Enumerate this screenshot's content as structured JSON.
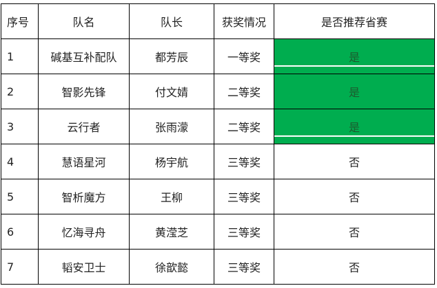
{
  "headers": [
    "序号",
    "队名",
    "队长",
    "获奖情况",
    "是否推荐省赛"
  ],
  "rows": [
    {
      "no": "1",
      "team": "碱基互补配队",
      "captain": "都芳辰",
      "award": "一等奖",
      "recommend": "是"
    },
    {
      "no": "2",
      "team": "智影先锋",
      "captain": "付文婧",
      "award": "二等奖",
      "recommend": "是"
    },
    {
      "no": "3",
      "team": "云行者",
      "captain": "张雨濛",
      "award": "二等奖",
      "recommend": "是"
    },
    {
      "no": "4",
      "team": "慧语星河",
      "captain": "杨宇航",
      "award": "三等奖",
      "recommend": "否"
    },
    {
      "no": "5",
      "team": "智析魔方",
      "captain": "王柳",
      "award": "三等奖",
      "recommend": "否"
    },
    {
      "no": "6",
      "team": "忆海寻舟",
      "captain": "黄滢芝",
      "award": "三等奖",
      "recommend": "否"
    },
    {
      "no": "7",
      "team": "韬安卫士",
      "captain": "徐歆懿",
      "award": "三等奖",
      "recommend": "否"
    }
  ],
  "colors": {
    "highlight": "#00ad4f"
  }
}
